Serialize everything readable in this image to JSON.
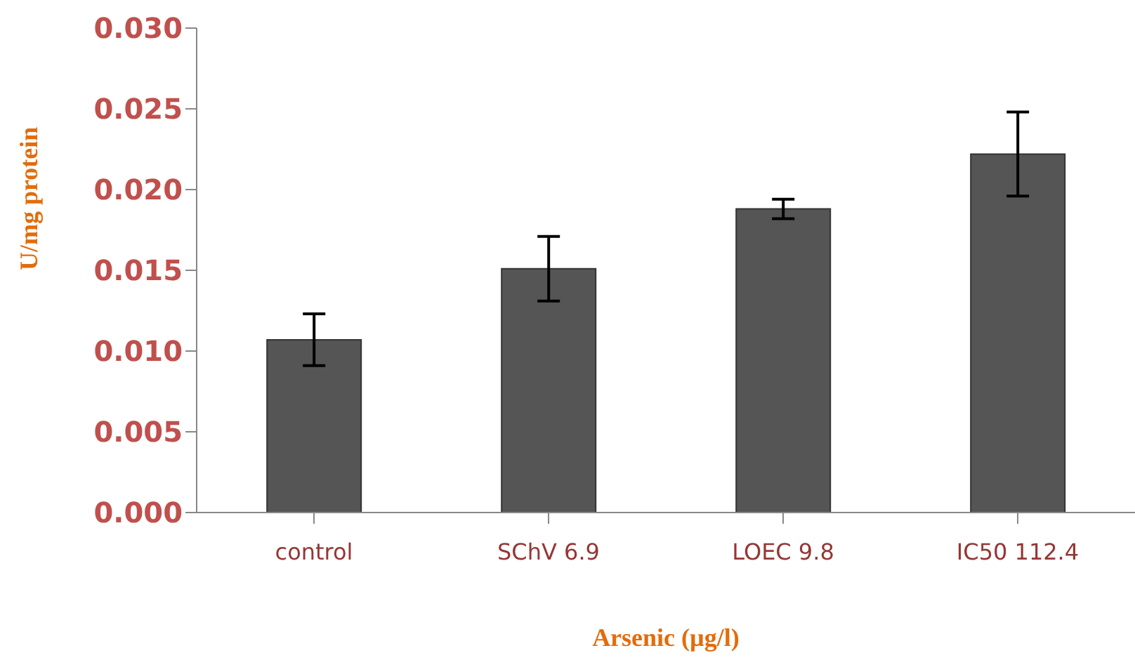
{
  "chart_data": {
    "type": "bar",
    "xlabel": "Arsenic (µg/l)",
    "ylabel": "U/mg protein",
    "categories": [
      "control",
      "SChV 6.9",
      "LOEC 9.8",
      "IC50 112.4"
    ],
    "values": [
      0.0107,
      0.0151,
      0.0188,
      0.0222
    ],
    "errors": [
      0.0016,
      0.002,
      0.0006,
      0.0026
    ],
    "color": "#555555",
    "ylim": [
      0,
      0.03
    ],
    "yticks": [
      {
        "value": 0,
        "label": "0.000"
      },
      {
        "value": 0.005,
        "label": "0.005"
      },
      {
        "value": 0.01,
        "label": "0.010"
      },
      {
        "value": 0.015,
        "label": "0.015"
      },
      {
        "value": 0.02,
        "label": "0.020"
      },
      {
        "value": 0.025,
        "label": "0.025"
      },
      {
        "value": 0.03,
        "label": "0.030"
      }
    ],
    "grid": false,
    "legend": false
  }
}
